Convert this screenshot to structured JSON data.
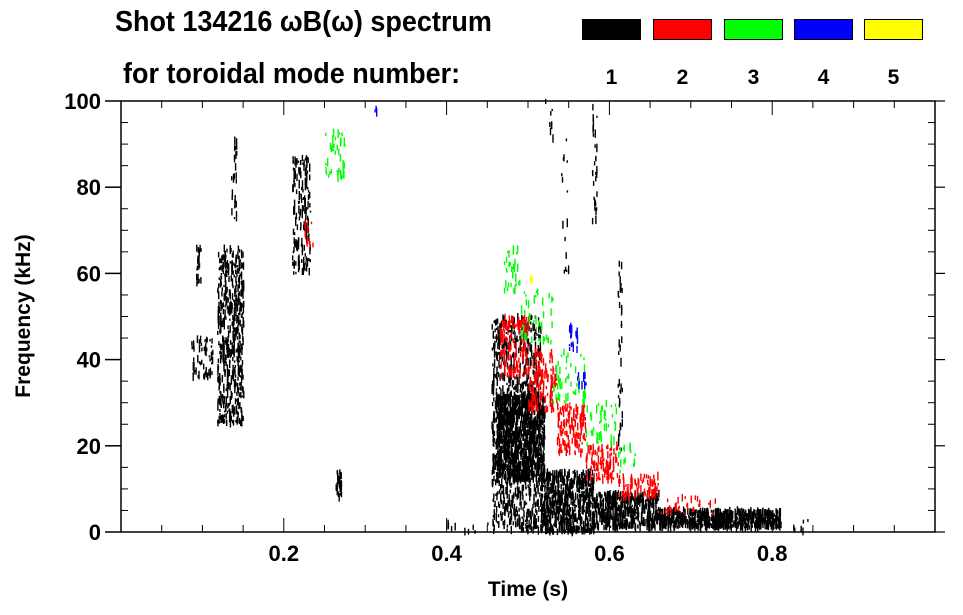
{
  "chart_data": {
    "type": "heatmap",
    "title": "Shot 134216 ωB(ω) spectrum",
    "subtitle": "for toroidal mode number:",
    "xlabel": "Time (s)",
    "ylabel": "Frequency (kHz)",
    "xlim": [
      0,
      1.0
    ],
    "ylim": [
      0,
      100
    ],
    "xticks": [
      0.2,
      0.4,
      0.6,
      0.8
    ],
    "xtick_labels": [
      "0.2",
      "0.4",
      "0.6",
      "0.8"
    ],
    "yticks": [
      0,
      20,
      40,
      60,
      80,
      100
    ],
    "ytick_labels": [
      "0",
      "20",
      "40",
      "60",
      "80",
      "100"
    ],
    "grid": false,
    "legend": {
      "placement": "top-right",
      "entries": [
        {
          "label": "1",
          "color": "#000000"
        },
        {
          "label": "2",
          "color": "#ff0000"
        },
        {
          "label": "3",
          "color": "#00ff00"
        },
        {
          "label": "4",
          "color": "#0000ff"
        },
        {
          "label": "5",
          "color": "#ffff00"
        }
      ]
    },
    "regions": [
      {
        "mode": 1,
        "t": [
          0.118,
          0.15
        ],
        "f": [
          25,
          66
        ],
        "n": 520
      },
      {
        "mode": 1,
        "t": [
          0.085,
          0.112
        ],
        "f": [
          36,
          45
        ],
        "n": 60
      },
      {
        "mode": 1,
        "t": [
          0.092,
          0.098
        ],
        "f": [
          56,
          66
        ],
        "n": 20
      },
      {
        "mode": 1,
        "t": [
          0.135,
          0.142
        ],
        "f": [
          72,
          92
        ],
        "n": 25
      },
      {
        "mode": 1,
        "t": [
          0.21,
          0.232
        ],
        "f": [
          60,
          87
        ],
        "n": 170
      },
      {
        "mode": 1,
        "t": [
          0.263,
          0.27
        ],
        "f": [
          8,
          14
        ],
        "n": 30
      },
      {
        "mode": 1,
        "t": [
          0.455,
          0.515
        ],
        "f": [
          0,
          50
        ],
        "n": 900
      },
      {
        "mode": 1,
        "t": [
          0.46,
          0.52
        ],
        "f": [
          12,
          32
        ],
        "n": 900
      },
      {
        "mode": 1,
        "t": [
          0.515,
          0.58
        ],
        "f": [
          0,
          14
        ],
        "n": 650
      },
      {
        "mode": 1,
        "t": [
          0.58,
          0.66
        ],
        "f": [
          1,
          9
        ],
        "n": 500
      },
      {
        "mode": 1,
        "t": [
          0.66,
          0.81
        ],
        "f": [
          1,
          5
        ],
        "n": 700
      },
      {
        "mode": 1,
        "t": [
          0.61,
          0.615
        ],
        "f": [
          18,
          65
        ],
        "n": 40
      },
      {
        "mode": 1,
        "t": [
          0.578,
          0.584
        ],
        "f": [
          72,
          99
        ],
        "n": 30
      },
      {
        "mode": 1,
        "t": [
          0.54,
          0.55
        ],
        "f": [
          60,
          99
        ],
        "n": 15
      },
      {
        "mode": 1,
        "t": [
          0.52,
          0.53
        ],
        "f": [
          90,
          100
        ],
        "n": 8
      },
      {
        "mode": 1,
        "t": [
          0.4,
          0.45
        ],
        "f": [
          0,
          2
        ],
        "n": 10
      },
      {
        "mode": 1,
        "t": [
          0.82,
          0.85
        ],
        "f": [
          0,
          3
        ],
        "n": 8
      },
      {
        "mode": 2,
        "t": [
          0.465,
          0.5
        ],
        "f": [
          36,
          50
        ],
        "n": 160
      },
      {
        "mode": 2,
        "t": [
          0.5,
          0.535
        ],
        "f": [
          28,
          42
        ],
        "n": 140
      },
      {
        "mode": 2,
        "t": [
          0.535,
          0.57
        ],
        "f": [
          18,
          30
        ],
        "n": 140
      },
      {
        "mode": 2,
        "t": [
          0.57,
          0.61
        ],
        "f": [
          12,
          20
        ],
        "n": 110
      },
      {
        "mode": 2,
        "t": [
          0.61,
          0.66
        ],
        "f": [
          8,
          13
        ],
        "n": 80
      },
      {
        "mode": 2,
        "t": [
          0.66,
          0.73
        ],
        "f": [
          4,
          8
        ],
        "n": 30
      },
      {
        "mode": 2,
        "t": [
          0.225,
          0.235
        ],
        "f": [
          66,
          72
        ],
        "n": 12
      },
      {
        "mode": 3,
        "t": [
          0.47,
          0.49
        ],
        "f": [
          55,
          66
        ],
        "n": 35
      },
      {
        "mode": 3,
        "t": [
          0.49,
          0.53
        ],
        "f": [
          44,
          56
        ],
        "n": 40
      },
      {
        "mode": 3,
        "t": [
          0.53,
          0.57
        ],
        "f": [
          30,
          42
        ],
        "n": 50
      },
      {
        "mode": 3,
        "t": [
          0.57,
          0.61
        ],
        "f": [
          20,
          30
        ],
        "n": 45
      },
      {
        "mode": 3,
        "t": [
          0.61,
          0.64
        ],
        "f": [
          14,
          20
        ],
        "n": 15
      },
      {
        "mode": 3,
        "t": [
          0.25,
          0.275
        ],
        "f": [
          82,
          93
        ],
        "n": 45
      },
      {
        "mode": 4,
        "t": [
          0.55,
          0.56
        ],
        "f": [
          41,
          48
        ],
        "n": 18
      },
      {
        "mode": 4,
        "t": [
          0.56,
          0.575
        ],
        "f": [
          34,
          37
        ],
        "n": 10
      },
      {
        "mode": 4,
        "t": [
          0.31,
          0.315
        ],
        "f": [
          97,
          99
        ],
        "n": 3
      },
      {
        "mode": 5,
        "t": [
          0.502,
          0.508
        ],
        "f": [
          58,
          60
        ],
        "n": 3
      }
    ]
  }
}
